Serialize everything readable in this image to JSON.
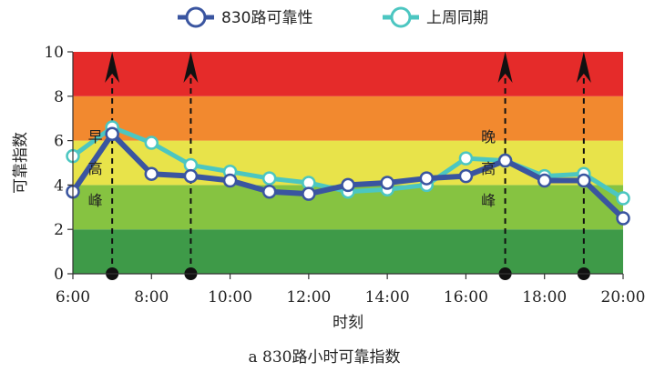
{
  "chart_data": {
    "type": "line",
    "caption": "a 830路小时可靠指数",
    "xlabel": "时刻",
    "ylabel": "可靠指数",
    "x_ticks": [
      "6:00",
      "8:00",
      "10:00",
      "12:00",
      "14:00",
      "16:00",
      "18:00",
      "20:00"
    ],
    "y_ticks": [
      "0",
      "2",
      "4",
      "6",
      "8",
      "10"
    ],
    "xlim": [
      6,
      20
    ],
    "ylim": [
      0,
      10
    ],
    "bands": [
      {
        "from": 0,
        "to": 2,
        "color": "#3e9a48"
      },
      {
        "from": 2,
        "to": 4,
        "color": "#86c341"
      },
      {
        "from": 4,
        "to": 6,
        "color": "#e8e34a"
      },
      {
        "from": 6,
        "to": 8,
        "color": "#f2892f"
      },
      {
        "from": 8,
        "to": 10,
        "color": "#e52b2a"
      }
    ],
    "series": [
      {
        "name": "830路可靠性",
        "color": "#3a55a0",
        "x": [
          6,
          7,
          8,
          9,
          10,
          11,
          12,
          13,
          14,
          15,
          16,
          17,
          18,
          19,
          20
        ],
        "y": [
          3.7,
          6.3,
          4.5,
          4.4,
          4.2,
          3.7,
          3.6,
          4.0,
          4.1,
          4.3,
          4.4,
          5.1,
          4.2,
          4.2,
          2.5
        ]
      },
      {
        "name": "上周同期",
        "color": "#4cc6c1",
        "x": [
          6,
          7,
          8,
          9,
          10,
          11,
          12,
          13,
          14,
          15,
          16,
          17,
          18,
          19,
          20
        ],
        "y": [
          5.3,
          6.6,
          5.9,
          4.9,
          4.6,
          4.3,
          4.1,
          3.7,
          3.8,
          4.0,
          5.2,
          5.1,
          4.4,
          4.5,
          3.4
        ]
      }
    ],
    "peak_markers": [
      7,
      9,
      17,
      19
    ],
    "annotations": [
      {
        "text": "早高峰",
        "x": 7
      },
      {
        "text": "晚高峰",
        "x": 17
      }
    ]
  }
}
